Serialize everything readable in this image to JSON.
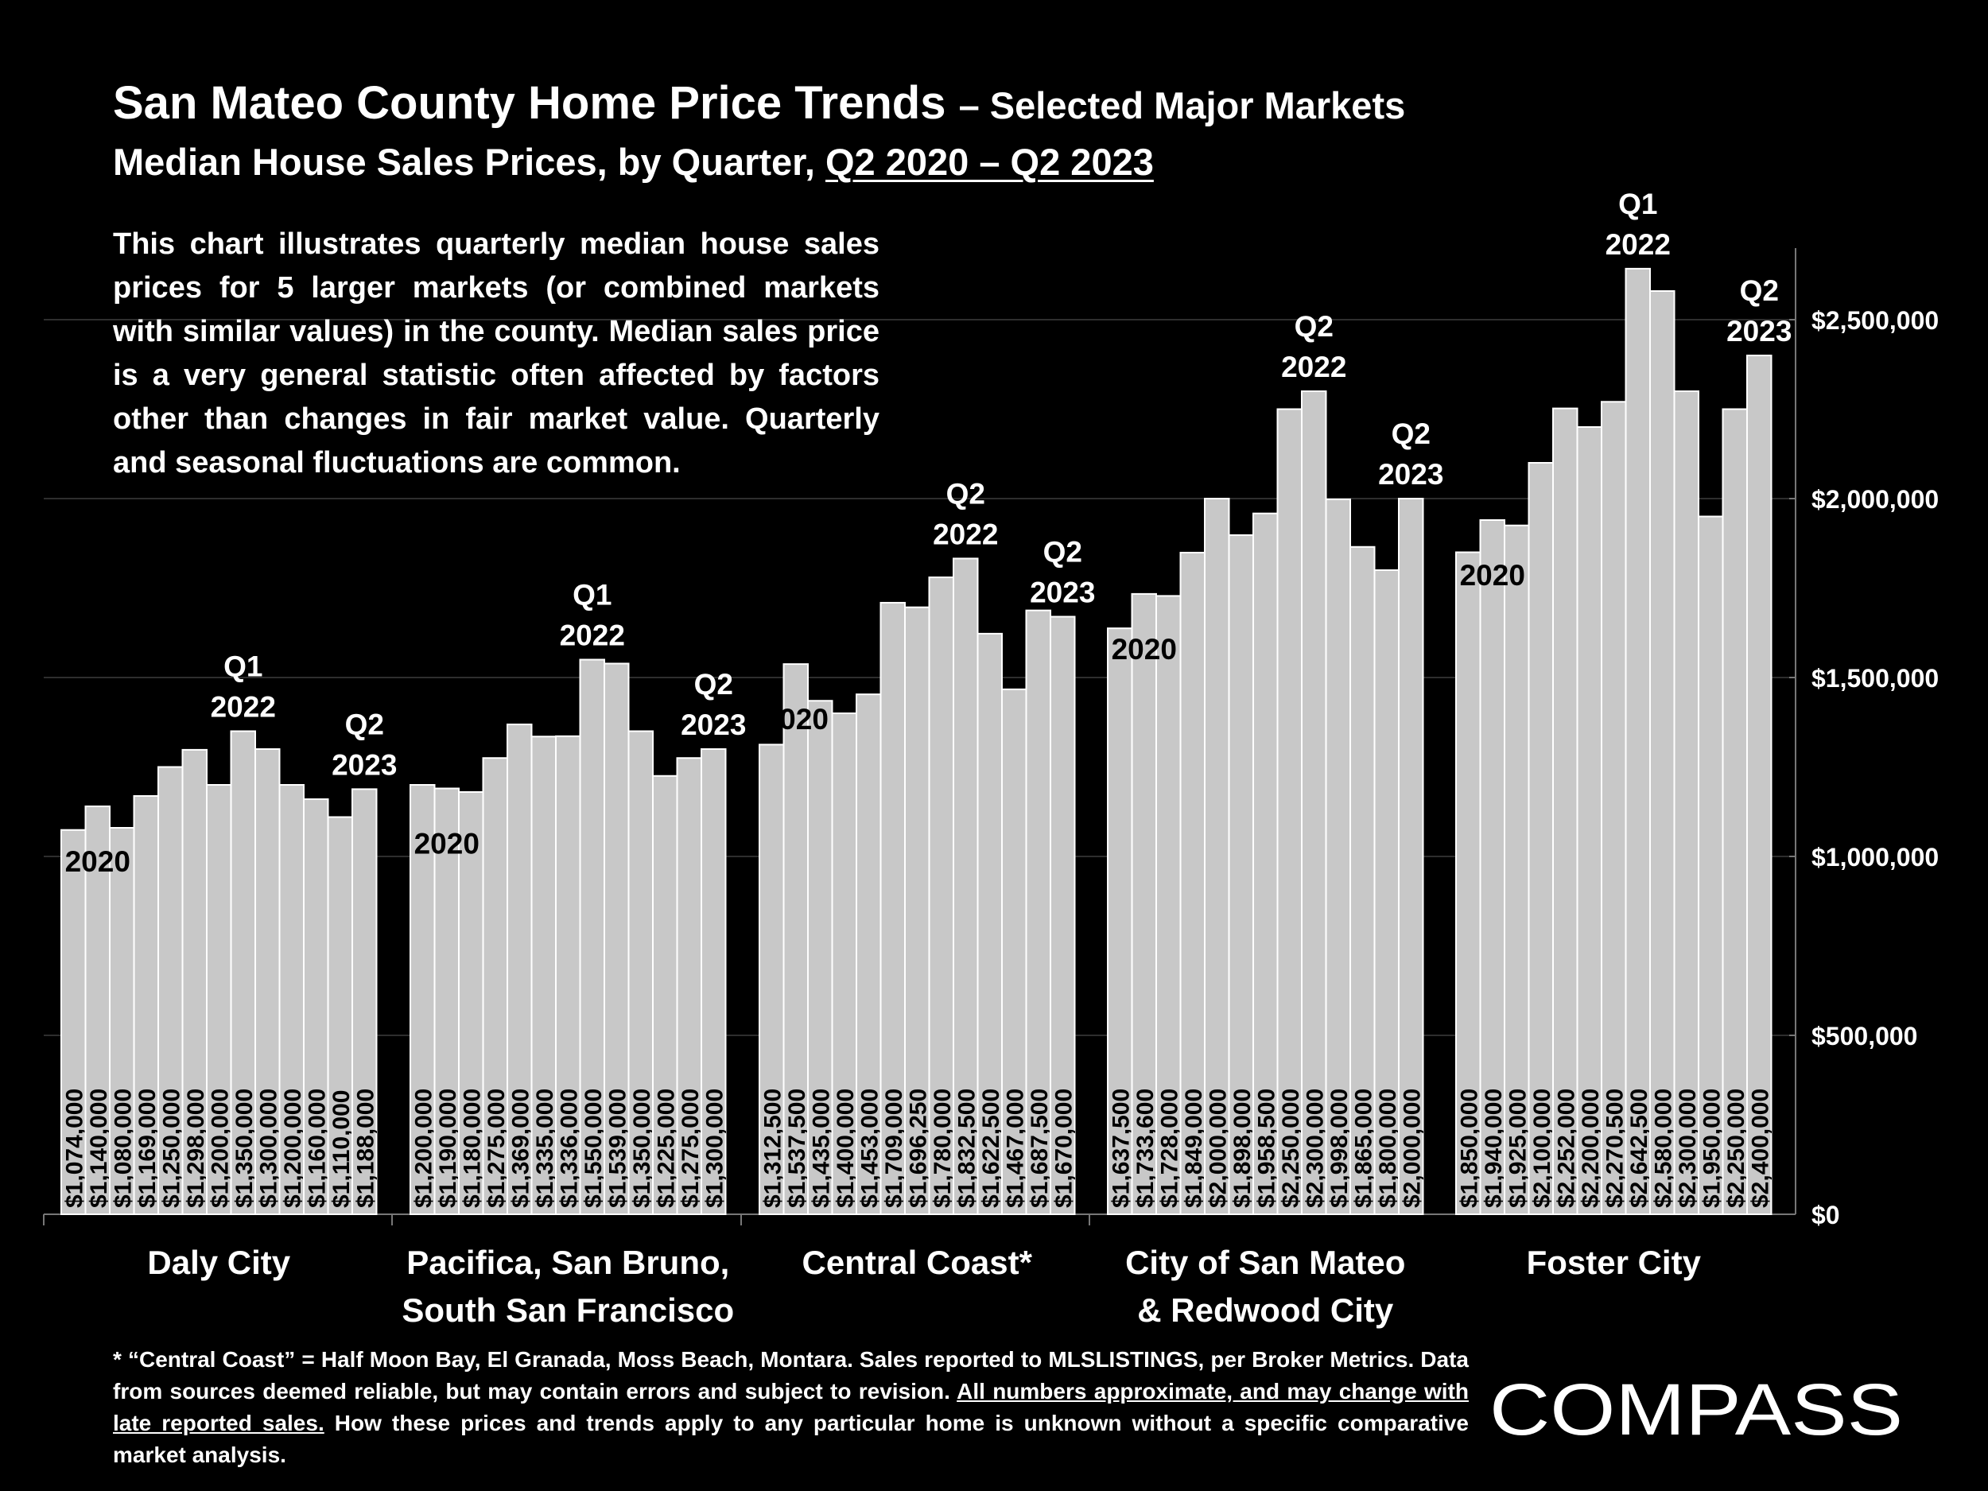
{
  "header": {
    "title_main": "San Mateo County Home Price Trends",
    "title_suffix": "– Selected Major Markets",
    "subtitle_prefix": "Median House Sales Prices, by Quarter, ",
    "subtitle_range": "Q2 2020 – Q2 2023"
  },
  "description": "This chart illustrates quarterly median house sales prices for 5 larger markets (or combined markets with similar values) in the county. Median sales price is a very general statistic often affected by factors other than changes in fair market value. Quarterly and seasonal fluctuations are common.",
  "footnote": {
    "part1": "* “Central Coast” = Half Moon Bay, El Granada, Moss Beach, Montara. Sales reported to MLSLISTINGS, per Broker Metrics. Data from sources deemed reliable, but may contain errors and subject to revision. ",
    "underlined": "All numbers approximate, and may change with late reported sales.",
    "part2": " How these prices and trends apply to any particular home is unknown without a specific comparative market analysis."
  },
  "logo_text": "COMPASS",
  "colors": {
    "background": "#000000",
    "bar": "#c8c8c8",
    "bar_edge": "#ffffff",
    "text": "#ffffff",
    "label_text": "#000000"
  },
  "chart_data": {
    "type": "bar",
    "ylim": [
      0,
      2700000
    ],
    "y_ticks": [
      0,
      500000,
      1000000,
      1500000,
      2000000,
      2500000
    ],
    "y_tick_labels": [
      "$0",
      "$500,000",
      "$1,000,000",
      "$1,500,000",
      "$2,000,000",
      "$2,500,000"
    ],
    "y_axis_position": "right",
    "grid": true,
    "groups": [
      {
        "name": "Daly City",
        "label_lines": [
          "Daly City"
        ],
        "values": [
          1074000,
          1140000,
          1080000,
          1169000,
          1250000,
          1298000,
          1200000,
          1350000,
          1300000,
          1200000,
          1160000,
          1110000,
          1188000
        ],
        "value_labels": [
          "$1,074,000",
          "$1,140,000",
          "$1,080,000",
          "$1,169,000",
          "$1,250,000",
          "$1,298,000",
          "$1,200,000",
          "$1,350,000",
          "$1,300,000",
          "$1,200,000",
          "$1,160,000",
          "$1,110,000",
          "$1,188,000"
        ],
        "annotations": [
          {
            "bar": 1,
            "lines": [
              "2020"
            ],
            "placement": "inside"
          },
          {
            "bar": 7,
            "lines": [
              "Q1",
              "2022"
            ],
            "placement": "above"
          },
          {
            "bar": 12,
            "lines": [
              "Q2",
              "2023"
            ],
            "placement": "above"
          }
        ]
      },
      {
        "name": "Pacifica, San Bruno, South San Francisco",
        "label_lines": [
          "Pacifica, San Bruno,",
          "South San Francisco"
        ],
        "values": [
          1200000,
          1190000,
          1180000,
          1275000,
          1369000,
          1335000,
          1336000,
          1550000,
          1539000,
          1350000,
          1225000,
          1275000,
          1300000
        ],
        "value_labels": [
          "$1,200,000",
          "$1,190,000",
          "$1,180,000",
          "$1,275,000",
          "$1,369,000",
          "$1,335,000",
          "$1,336,000",
          "$1,550,000",
          "$1,539,000",
          "$1,350,000",
          "$1,225,000",
          "$1,275,000",
          "$1,300,000"
        ],
        "annotations": [
          {
            "bar": 1,
            "lines": [
              "2020"
            ],
            "placement": "inside"
          },
          {
            "bar": 7,
            "lines": [
              "Q1",
              "2022"
            ],
            "placement": "above"
          },
          {
            "bar": 12,
            "lines": [
              "Q2",
              "2023"
            ],
            "placement": "above"
          }
        ]
      },
      {
        "name": "Central Coast*",
        "label_lines": [
          "Central Coast*"
        ],
        "values": [
          1312500,
          1537500,
          1435000,
          1400000,
          1453000,
          1709000,
          1696250,
          1780000,
          1832500,
          1622500,
          1467000,
          1687500,
          1670000
        ],
        "value_labels": [
          "$1,312,500",
          "$1,537,500",
          "$1,435,000",
          "$1,400,000",
          "$1,453,000",
          "$1,709,000",
          "$1,696,250",
          "$1,780,000",
          "$1,832,500",
          "$1,622,500",
          "$1,467,000",
          "$1,687,500",
          "$1,670,000"
        ],
        "annotations": [
          {
            "bar": 1,
            "lines": [
              "2020"
            ],
            "placement": "inside"
          },
          {
            "bar": 8,
            "lines": [
              "Q2",
              "2022"
            ],
            "placement": "above"
          },
          {
            "bar": 12,
            "lines": [
              "Q2",
              "2023"
            ],
            "placement": "above"
          }
        ]
      },
      {
        "name": "City of San Mateo & Redwood City",
        "label_lines": [
          "City of San Mateo",
          "& Redwood City"
        ],
        "values": [
          1637500,
          1733600,
          1728000,
          1849000,
          2000000,
          1898000,
          1958500,
          2250000,
          2300000,
          1998000,
          1865000,
          1800000,
          2000000
        ],
        "value_labels": [
          "$1,637,500",
          "$1,733,600",
          "$1,728,000",
          "$1,849,000",
          "$2,000,000",
          "$1,898,000",
          "$1,958,500",
          "$2,250,000",
          "$2,300,000",
          "$1,998,000",
          "$1,865,000",
          "$1,800,000",
          "$2,000,000"
        ],
        "annotations": [
          {
            "bar": 1,
            "lines": [
              "2020"
            ],
            "placement": "inside"
          },
          {
            "bar": 8,
            "lines": [
              "Q2",
              "2022"
            ],
            "placement": "above"
          },
          {
            "bar": 12,
            "lines": [
              "Q2",
              "2023"
            ],
            "placement": "above"
          }
        ]
      },
      {
        "name": "Foster City",
        "label_lines": [
          "Foster City"
        ],
        "values": [
          1850000,
          1940000,
          1925000,
          2100000,
          2252000,
          2200000,
          2270500,
          2642500,
          2580000,
          2300000,
          1950000,
          2250000,
          2400000
        ],
        "value_labels": [
          "$1,850,000",
          "$1,940,000",
          "$1,925,000",
          "$2,100,000",
          "$2,252,000",
          "$2,200,000",
          "$2,270,500",
          "$2,642,500",
          "$2,580,000",
          "$2,300,000",
          "$1,950,000",
          "$2,250,000",
          "$2,400,000"
        ],
        "annotations": [
          {
            "bar": 1,
            "lines": [
              "2020"
            ],
            "placement": "inside"
          },
          {
            "bar": 7,
            "lines": [
              "Q1",
              "2022"
            ],
            "placement": "above"
          },
          {
            "bar": 12,
            "lines": [
              "Q2",
              "2023"
            ],
            "placement": "above"
          }
        ]
      }
    ]
  }
}
